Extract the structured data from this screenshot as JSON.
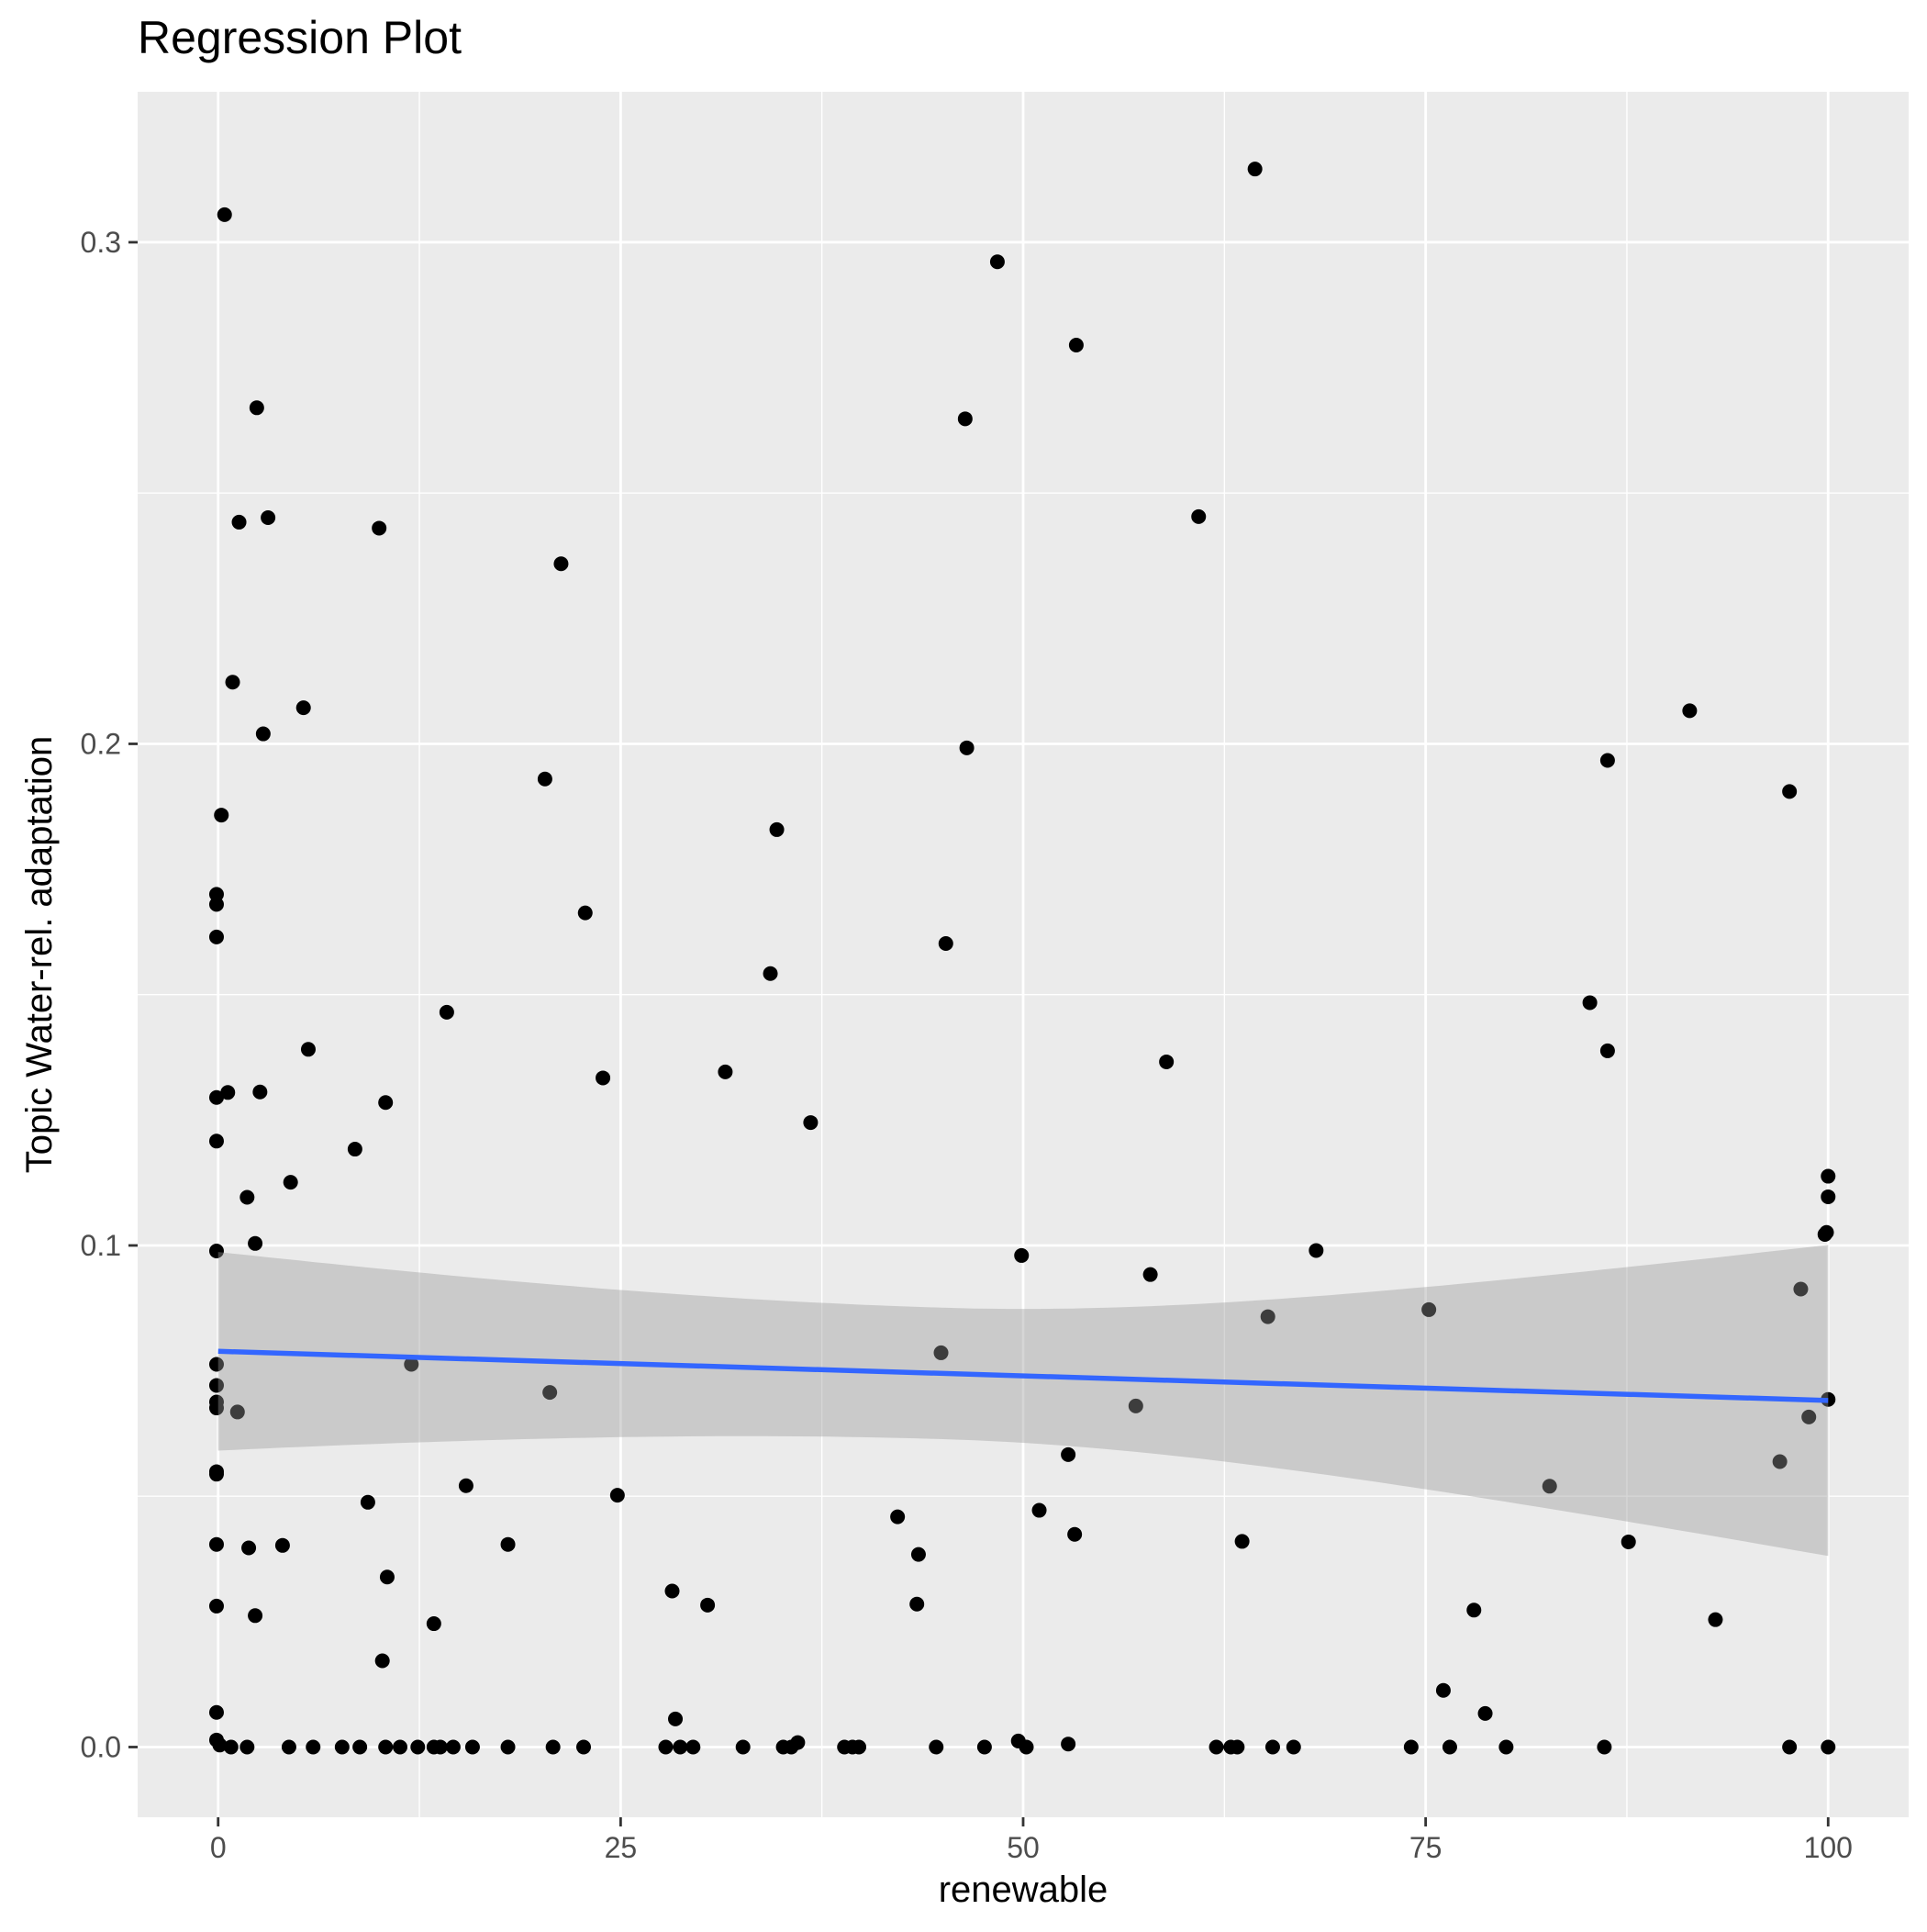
{
  "chart_data": {
    "type": "scatter",
    "title": "Regression Plot",
    "xlabel": "renewable",
    "ylabel": "Topic Water-rel. adaptation",
    "xlim": [
      -5,
      105
    ],
    "ylim": [
      -0.014,
      0.33
    ],
    "x_ticks": [
      0,
      25,
      50,
      75,
      100
    ],
    "x_tick_labels": [
      "0",
      "25",
      "50",
      "75",
      "100"
    ],
    "y_ticks": [
      0.0,
      0.1,
      0.2,
      0.3
    ],
    "y_tick_labels": [
      "0.0",
      "0.1",
      "0.2",
      "0.3"
    ],
    "grid": true,
    "legend": "none",
    "colors": {
      "panel_background": "#ebebeb",
      "grid_line": "#ffffff",
      "point": "#000000",
      "regression_line": "#3366ff",
      "confidence_band": "#999999"
    },
    "points": [
      [
        0.4,
        0.3055
      ],
      [
        2.4,
        0.267
      ],
      [
        1.3,
        0.2442
      ],
      [
        3.1,
        0.2451
      ],
      [
        10.0,
        0.243
      ],
      [
        21.3,
        0.2359
      ],
      [
        0.9,
        0.2123
      ],
      [
        5.3,
        0.2072
      ],
      [
        2.8,
        0.202
      ],
      [
        0.2,
        0.1858
      ],
      [
        20.3,
        0.193
      ],
      [
        -0.1,
        0.17
      ],
      [
        -0.1,
        0.168
      ],
      [
        -0.1,
        0.1615
      ],
      [
        22.8,
        0.1663
      ],
      [
        34.3,
        0.1542
      ],
      [
        14.2,
        0.1465
      ],
      [
        5.6,
        0.1391
      ],
      [
        23.9,
        0.1334
      ],
      [
        31.5,
        0.1346
      ],
      [
        0.6,
        0.1305
      ],
      [
        2.6,
        0.1306
      ],
      [
        -0.1,
        0.1295
      ],
      [
        10.4,
        0.1285
      ],
      [
        -0.1,
        0.1208
      ],
      [
        8.5,
        0.1192
      ],
      [
        4.5,
        0.1126
      ],
      [
        1.8,
        0.1096
      ],
      [
        2.3,
        0.1004
      ],
      [
        -0.1,
        0.0989
      ],
      [
        12.0,
        0.0763
      ],
      [
        20.6,
        0.0707
      ],
      [
        1.2,
        0.0668
      ],
      [
        -0.1,
        0.0763
      ],
      [
        -0.1,
        0.0721
      ],
      [
        -0.1,
        0.0688
      ],
      [
        -0.1,
        0.0676
      ],
      [
        -0.1,
        0.0549
      ],
      [
        -0.1,
        0.0544
      ],
      [
        9.3,
        0.0488
      ],
      [
        15.4,
        0.0521
      ],
      [
        24.8,
        0.0502
      ],
      [
        -0.1,
        0.0404
      ],
      [
        1.9,
        0.0397
      ],
      [
        4.0,
        0.0402
      ],
      [
        18.0,
        0.0404
      ],
      [
        10.5,
        0.0339
      ],
      [
        -0.1,
        0.0281
      ],
      [
        2.3,
        0.0262
      ],
      [
        13.4,
        0.0246
      ],
      [
        10.2,
        0.0172
      ],
      [
        -0.1,
        0.0069
      ],
      [
        -0.1,
        0.0014
      ],
      [
        0.1,
        0.0004
      ],
      [
        0.8,
        0.0
      ],
      [
        1.8,
        0.0
      ],
      [
        4.4,
        0.0
      ],
      [
        5.9,
        0.0
      ],
      [
        7.7,
        0.0
      ],
      [
        8.8,
        0.0
      ],
      [
        10.4,
        0.0
      ],
      [
        11.3,
        0.0
      ],
      [
        12.4,
        0.0
      ],
      [
        13.4,
        0.0
      ],
      [
        13.8,
        0.0
      ],
      [
        14.6,
        0.0
      ],
      [
        15.8,
        0.0
      ],
      [
        18.0,
        0.0
      ],
      [
        20.8,
        0.0
      ],
      [
        22.7,
        0.0
      ],
      [
        34.7,
        0.1829
      ],
      [
        36.8,
        0.1245
      ],
      [
        28.2,
        0.0311
      ],
      [
        30.4,
        0.0283
      ],
      [
        28.4,
        0.0056
      ],
      [
        27.8,
        0.0
      ],
      [
        28.7,
        0.0
      ],
      [
        29.5,
        0.0
      ],
      [
        32.6,
        0.0
      ],
      [
        35.1,
        0.0
      ],
      [
        35.6,
        0.0
      ],
      [
        36.0,
        0.0009
      ],
      [
        38.9,
        0.0
      ],
      [
        39.4,
        0.0
      ],
      [
        39.8,
        0.0
      ],
      [
        42.2,
        0.0459
      ],
      [
        43.5,
        0.0384
      ],
      [
        43.4,
        0.0285
      ],
      [
        44.6,
        0.0
      ],
      [
        47.6,
        0.0
      ],
      [
        48.4,
        0.2961
      ],
      [
        46.4,
        0.2648
      ],
      [
        46.5,
        0.1992
      ],
      [
        45.2,
        0.1602
      ],
      [
        44.9,
        0.0786
      ],
      [
        53.3,
        0.2795
      ],
      [
        49.9,
        0.098
      ],
      [
        51.0,
        0.0472
      ],
      [
        52.8,
        0.0583
      ],
      [
        53.2,
        0.0424
      ],
      [
        49.7,
        0.0012
      ],
      [
        50.2,
        0.0
      ],
      [
        52.8,
        0.0006
      ],
      [
        64.4,
        0.3146
      ],
      [
        60.9,
        0.2453
      ],
      [
        58.9,
        0.1366
      ],
      [
        57.9,
        0.0942
      ],
      [
        65.2,
        0.0858
      ],
      [
        68.2,
        0.099
      ],
      [
        57.0,
        0.068
      ],
      [
        63.6,
        0.041
      ],
      [
        62.0,
        0.0
      ],
      [
        62.9,
        0.0
      ],
      [
        63.3,
        0.0
      ],
      [
        65.5,
        0.0
      ],
      [
        66.8,
        0.0
      ],
      [
        75.2,
        0.0872
      ],
      [
        82.7,
        0.052
      ],
      [
        78.0,
        0.0273
      ],
      [
        76.1,
        0.0113
      ],
      [
        78.7,
        0.0067
      ],
      [
        74.1,
        0.0
      ],
      [
        76.5,
        0.0
      ],
      [
        80.0,
        0.0
      ],
      [
        91.4,
        0.2066
      ],
      [
        86.3,
        0.1967
      ],
      [
        97.6,
        0.1905
      ],
      [
        85.2,
        0.1484
      ],
      [
        86.3,
        0.1388
      ],
      [
        87.6,
        0.0409
      ],
      [
        93.0,
        0.0254
      ],
      [
        86.1,
        0.0
      ],
      [
        97.6,
        0.0
      ],
      [
        100.0,
        0.1138
      ],
      [
        100.0,
        0.1097
      ],
      [
        99.9,
        0.1026
      ],
      [
        99.8,
        0.1022
      ],
      [
        98.3,
        0.0913
      ],
      [
        100.0,
        0.0693
      ],
      [
        98.8,
        0.0658
      ],
      [
        97.0,
        0.0569
      ],
      [
        100.0,
        0.0
      ]
    ],
    "regression": {
      "method": "lm",
      "x_range": [
        0,
        100
      ],
      "fit": [
        0.0789,
        0.0691
      ],
      "ci_lower_at_ends": [
        0.0591,
        0.0381
      ],
      "ci_upper_at_ends": [
        0.0987,
        0.1001
      ],
      "ci_mid": {
        "x": 45,
        "lower": 0.0613,
        "upper": 0.0875
      }
    }
  }
}
